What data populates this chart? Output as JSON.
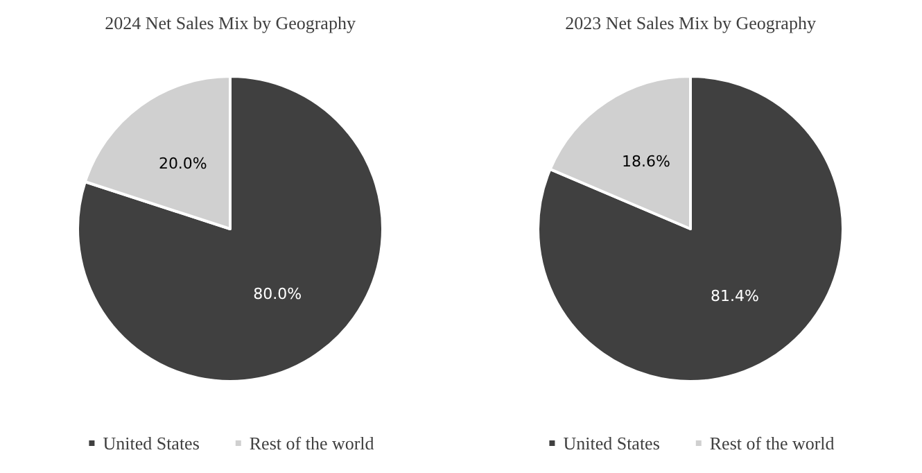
{
  "chart_data": [
    {
      "type": "pie",
      "title": "2024 Net Sales Mix by Geography",
      "categories": [
        "United States",
        "Rest of the world"
      ],
      "values": [
        80.0,
        20.0
      ],
      "colors": [
        "#404040",
        "#d0d0d0"
      ],
      "value_labels": [
        "80.0%",
        "20.0%"
      ],
      "legend": "bottom"
    },
    {
      "type": "pie",
      "title": "2023 Net Sales Mix by Geography",
      "categories": [
        "United States",
        "Rest of the world"
      ],
      "values": [
        81.4,
        18.6
      ],
      "colors": [
        "#404040",
        "#d0d0d0"
      ],
      "value_labels": [
        "81.4%",
        "18.6%"
      ],
      "legend": "bottom"
    }
  ]
}
